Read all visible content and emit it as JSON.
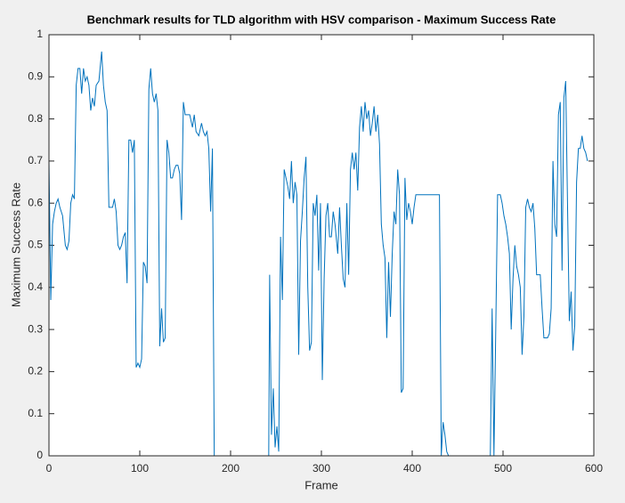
{
  "chart_data": {
    "type": "line",
    "title": "Benchmark results for TLD algorithm with HSV comparison - Maximum Success Rate",
    "x_label": "Frame",
    "y_label": "Maximum Success Rate",
    "color": "#0072bd",
    "xlim": [
      0,
      600
    ],
    "xticks": [
      0,
      100,
      200,
      300,
      400,
      500,
      600
    ],
    "ylim": [
      0,
      1
    ],
    "yticks": [
      0,
      0.1,
      0.2,
      0.3,
      0.4,
      0.5,
      0.6,
      0.7,
      0.8,
      0.9,
      1
    ],
    "x": [
      0,
      2,
      4,
      6,
      8,
      10,
      12,
      15,
      18,
      20,
      22,
      24,
      26,
      28,
      30,
      32,
      34,
      36,
      38,
      40,
      42,
      44,
      46,
      48,
      50,
      52,
      55,
      58,
      60,
      62,
      64,
      66,
      70,
      72,
      74,
      76,
      78,
      80,
      82,
      84,
      86,
      88,
      90,
      92,
      94,
      96,
      98,
      100,
      102,
      104,
      106,
      108,
      110,
      112,
      114,
      116,
      118,
      120,
      122,
      124,
      126,
      128,
      130,
      132,
      134,
      136,
      138,
      140,
      142,
      144,
      146,
      148,
      150,
      155,
      158,
      160,
      162,
      165,
      168,
      170,
      172,
      174,
      176,
      178,
      180,
      182,
      240,
      242,
      243,
      245,
      247,
      249,
      251,
      253,
      255,
      257,
      259,
      261,
      263,
      265,
      267,
      269,
      271,
      273,
      275,
      277,
      279,
      281,
      283,
      285,
      287,
      289,
      291,
      293,
      295,
      297,
      299,
      301,
      303,
      305,
      307,
      309,
      311,
      313,
      315,
      318,
      320,
      322,
      324,
      326,
      328,
      330,
      332,
      334,
      336,
      338,
      340,
      342,
      344,
      346,
      348,
      350,
      352,
      354,
      356,
      358,
      360,
      362,
      364,
      366,
      368,
      370,
      372,
      374,
      376,
      378,
      380,
      382,
      384,
      386,
      388,
      390,
      392,
      394,
      396,
      398,
      400,
      402,
      404,
      430,
      432,
      434,
      436,
      438,
      440,
      486,
      488,
      490,
      492,
      494,
      497,
      499,
      501,
      503,
      505,
      507,
      509,
      511,
      513,
      515,
      517,
      519,
      521,
      523,
      525,
      527,
      529,
      531,
      533,
      535,
      537,
      539,
      541,
      543,
      545,
      547,
      549,
      551,
      553,
      555,
      557,
      559,
      561,
      563,
      565,
      567,
      569,
      571,
      573,
      575,
      577,
      579,
      581,
      583,
      585,
      587,
      589,
      591,
      593
    ],
    "values": [
      0.7,
      0.37,
      0.55,
      0.58,
      0.6,
      0.61,
      0.59,
      0.57,
      0.5,
      0.49,
      0.51,
      0.6,
      0.62,
      0.61,
      0.88,
      0.92,
      0.92,
      0.86,
      0.92,
      0.89,
      0.9,
      0.88,
      0.82,
      0.85,
      0.83,
      0.88,
      0.89,
      0.96,
      0.88,
      0.84,
      0.82,
      0.59,
      0.59,
      0.61,
      0.58,
      0.5,
      0.49,
      0.5,
      0.52,
      0.53,
      0.41,
      0.75,
      0.75,
      0.72,
      0.75,
      0.21,
      0.22,
      0.21,
      0.23,
      0.46,
      0.45,
      0.41,
      0.87,
      0.92,
      0.86,
      0.84,
      0.86,
      0.82,
      0.26,
      0.35,
      0.27,
      0.28,
      0.75,
      0.72,
      0.66,
      0.66,
      0.68,
      0.69,
      0.69,
      0.67,
      0.56,
      0.84,
      0.81,
      0.81,
      0.78,
      0.81,
      0.77,
      0.76,
      0.79,
      0.77,
      0.76,
      0.77,
      0.73,
      0.58,
      0.73,
      0,
      0,
      0,
      0.43,
      0.05,
      0.16,
      0.02,
      0.07,
      0.01,
      0.52,
      0.37,
      0.68,
      0.66,
      0.64,
      0.61,
      0.7,
      0.6,
      0.65,
      0.62,
      0.24,
      0.51,
      0.58,
      0.66,
      0.71,
      0.4,
      0.25,
      0.27,
      0.6,
      0.57,
      0.62,
      0.44,
      0.6,
      0.18,
      0.42,
      0.57,
      0.6,
      0.52,
      0.52,
      0.58,
      0.55,
      0.48,
      0.59,
      0.5,
      0.42,
      0.4,
      0.6,
      0.43,
      0.68,
      0.72,
      0.68,
      0.72,
      0.63,
      0.78,
      0.83,
      0.77,
      0.84,
      0.8,
      0.82,
      0.76,
      0.79,
      0.83,
      0.77,
      0.81,
      0.74,
      0.55,
      0.5,
      0.47,
      0.28,
      0.46,
      0.33,
      0.48,
      0.58,
      0.55,
      0.68,
      0.62,
      0.15,
      0.16,
      0.66,
      0.56,
      0.6,
      0.58,
      0.55,
      0.59,
      0.62,
      0.62,
      0,
      0.08,
      0.05,
      0.01,
      0,
      0,
      0.35,
      0,
      0.3,
      0.62,
      0.62,
      0.6,
      0.57,
      0.55,
      0.52,
      0.48,
      0.3,
      0.42,
      0.5,
      0.45,
      0.43,
      0.4,
      0.24,
      0.33,
      0.59,
      0.61,
      0.59,
      0.58,
      0.6,
      0.54,
      0.43,
      0.43,
      0.43,
      0.35,
      0.28,
      0.28,
      0.28,
      0.29,
      0.35,
      0.7,
      0.55,
      0.52,
      0.81,
      0.84,
      0.44,
      0.85,
      0.89,
      0.6,
      0.32,
      0.39,
      0.25,
      0.31,
      0.65,
      0.73,
      0.73,
      0.76,
      0.73,
      0.72,
      0.7
    ]
  }
}
